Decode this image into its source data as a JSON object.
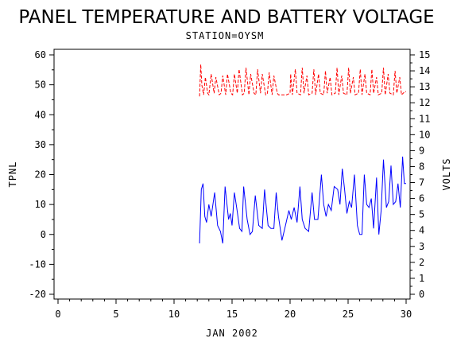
{
  "chart_data": {
    "type": "line",
    "title": "PANEL TEMPERATURE AND BATTERY VOLTAGE",
    "subtitle": "STATION=OYSM",
    "xlabel": "JAN 2002",
    "ylabel": "TPNL",
    "y2label": "VOLTS",
    "xlim": [
      0,
      30
    ],
    "ylim": [
      -20,
      60
    ],
    "y2lim": [
      0,
      15
    ],
    "x_ticks": [
      0,
      5,
      10,
      15,
      20,
      25,
      30
    ],
    "y_ticks": [
      -20,
      -10,
      0,
      10,
      20,
      30,
      40,
      50,
      60
    ],
    "y2_ticks": [
      0,
      1,
      2,
      3,
      4,
      5,
      6,
      7,
      8,
      9,
      10,
      11,
      12,
      13,
      14,
      15
    ],
    "grid": false,
    "series": [
      {
        "axis": "left",
        "color": "#0000ff",
        "dash": "solid",
        "x": [
          12.2,
          12.35,
          12.5,
          12.65,
          12.8,
          13.0,
          13.2,
          13.5,
          13.75,
          14.0,
          14.2,
          14.4,
          14.7,
          14.85,
          15.0,
          15.2,
          15.4,
          15.65,
          15.85,
          16.0,
          16.3,
          16.55,
          16.75,
          17.0,
          17.3,
          17.6,
          17.8,
          18.1,
          18.35,
          18.6,
          18.8,
          19.0,
          19.3,
          19.6,
          19.9,
          20.1,
          20.35,
          20.6,
          20.85,
          21.05,
          21.3,
          21.6,
          21.9,
          22.1,
          22.4,
          22.7,
          22.9,
          23.1,
          23.3,
          23.55,
          23.8,
          24.1,
          24.3,
          24.5,
          24.7,
          24.9,
          25.1,
          25.3,
          25.55,
          25.8,
          26.0,
          26.2,
          26.4,
          26.6,
          26.8,
          27.0,
          27.2,
          27.45,
          27.65,
          27.85,
          28.05,
          28.3,
          28.5,
          28.7,
          28.9,
          29.1,
          29.3,
          29.5,
          29.7,
          29.85,
          30.0
        ],
        "y": [
          -3,
          15,
          17,
          6,
          4,
          10,
          6,
          14,
          3,
          1,
          -3,
          16,
          5,
          7,
          3,
          14,
          9,
          2,
          1,
          16,
          5,
          0,
          1,
          13,
          3,
          2,
          15,
          3,
          2,
          2,
          14,
          6,
          -2,
          3,
          8,
          5,
          9,
          4,
          16,
          5,
          2,
          1,
          14,
          5,
          5,
          20,
          10,
          6,
          10,
          8,
          16,
          15,
          10,
          22,
          15,
          7,
          11,
          9,
          20,
          3,
          0,
          0,
          20,
          10,
          9,
          12,
          2,
          19,
          0,
          8,
          25,
          9,
          11,
          23,
          10,
          11,
          17,
          9,
          26,
          17,
          17
        ]
      },
      {
        "axis": "right",
        "color": "#ff0000",
        "dash": "dashed",
        "x": [
          12.2,
          12.3,
          12.4,
          12.55,
          12.7,
          12.9,
          13.0,
          13.2,
          13.45,
          13.6,
          13.9,
          14.05,
          14.2,
          14.45,
          14.6,
          14.9,
          15.05,
          15.2,
          15.45,
          15.6,
          15.9,
          16.05,
          16.2,
          16.45,
          16.6,
          16.9,
          17.05,
          17.2,
          17.45,
          17.6,
          17.9,
          18.05,
          18.2,
          18.45,
          18.6,
          18.9,
          19.0,
          19.1,
          19.3,
          19.5,
          19.7,
          20.0,
          20.05,
          20.2,
          20.45,
          20.6,
          20.9,
          21.05,
          21.2,
          21.45,
          21.6,
          21.9,
          22.05,
          22.2,
          22.45,
          22.6,
          22.9,
          23.05,
          23.2,
          23.45,
          23.6,
          23.9,
          24.05,
          24.2,
          24.45,
          24.6,
          24.9,
          25.05,
          25.2,
          25.45,
          25.6,
          25.9,
          26.05,
          26.2,
          26.45,
          26.6,
          26.9,
          27.05,
          27.2,
          27.45,
          27.6,
          27.9,
          28.05,
          28.2,
          28.45,
          28.6,
          28.9,
          29.05,
          29.2,
          29.45,
          29.6,
          29.9,
          30.0
        ],
        "y": [
          12.4,
          14.4,
          13.1,
          12.5,
          13.6,
          12.6,
          12.5,
          13.8,
          12.6,
          13.6,
          12.5,
          12.6,
          13.7,
          12.5,
          13.8,
          12.6,
          12.5,
          13.8,
          12.6,
          14.1,
          12.5,
          12.6,
          14.2,
          12.5,
          13.8,
          12.6,
          12.5,
          14.1,
          12.6,
          13.8,
          12.5,
          12.6,
          13.9,
          12.5,
          13.7,
          12.6,
          12.5,
          12.5,
          12.5,
          12.5,
          12.5,
          12.6,
          13.8,
          12.5,
          14.1,
          12.6,
          12.5,
          14.2,
          12.6,
          13.7,
          12.5,
          12.6,
          14.1,
          12.5,
          13.8,
          12.6,
          12.5,
          14.0,
          12.6,
          13.6,
          12.5,
          12.6,
          14.2,
          12.5,
          13.7,
          12.6,
          12.5,
          14.2,
          12.6,
          13.6,
          12.5,
          12.6,
          14.1,
          12.5,
          13.8,
          12.6,
          12.5,
          14.1,
          12.6,
          13.6,
          12.5,
          12.6,
          14.2,
          12.5,
          13.8,
          12.6,
          12.5,
          14.0,
          12.6,
          13.6,
          12.5,
          12.7,
          12.7
        ]
      }
    ]
  }
}
